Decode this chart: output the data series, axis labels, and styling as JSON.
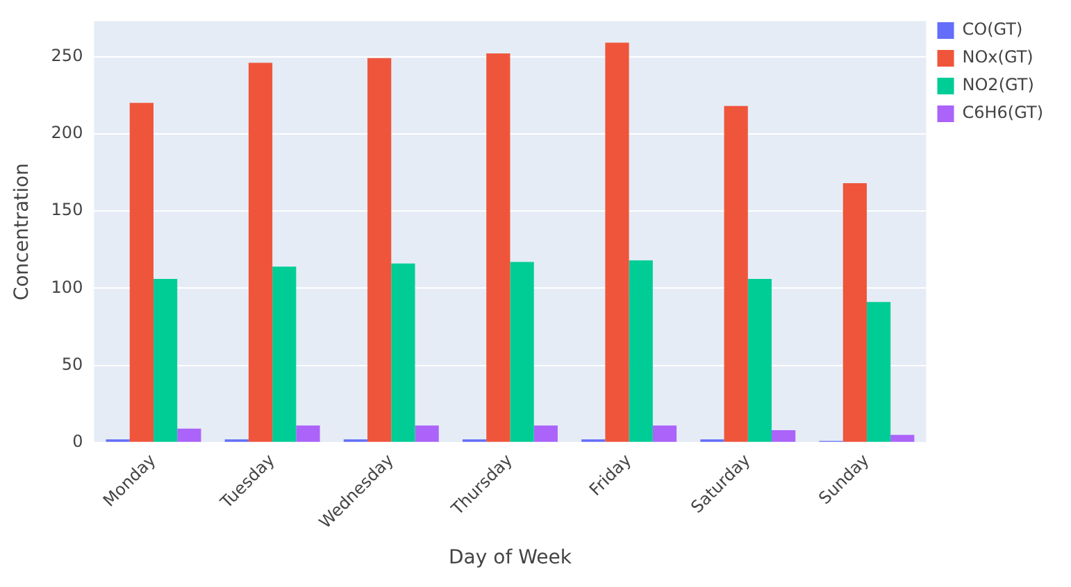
{
  "chart_data": {
    "type": "bar",
    "xlabel": "Day of Week",
    "ylabel": "Concentration",
    "categories": [
      "Monday",
      "Tuesday",
      "Wednesday",
      "Thursday",
      "Friday",
      "Saturday",
      "Sunday"
    ],
    "series": [
      {
        "name": "CO(GT)",
        "color": "#636efa",
        "values": [
          2,
          2,
          2,
          2,
          2,
          2,
          1
        ]
      },
      {
        "name": "NOx(GT)",
        "color": "#ef553b",
        "values": [
          220,
          246,
          249,
          252,
          259,
          218,
          168
        ]
      },
      {
        "name": "NO2(GT)",
        "color": "#00cc96",
        "values": [
          106,
          114,
          116,
          117,
          118,
          106,
          91
        ]
      },
      {
        "name": "C6H6(GT)",
        "color": "#ab63fa",
        "values": [
          9,
          11,
          11,
          11,
          11,
          8,
          5
        ]
      }
    ],
    "ylim": [
      0,
      273
    ],
    "yticks": [
      0,
      50,
      100,
      150,
      200,
      250
    ],
    "grid": "y",
    "legend": "top right"
  }
}
